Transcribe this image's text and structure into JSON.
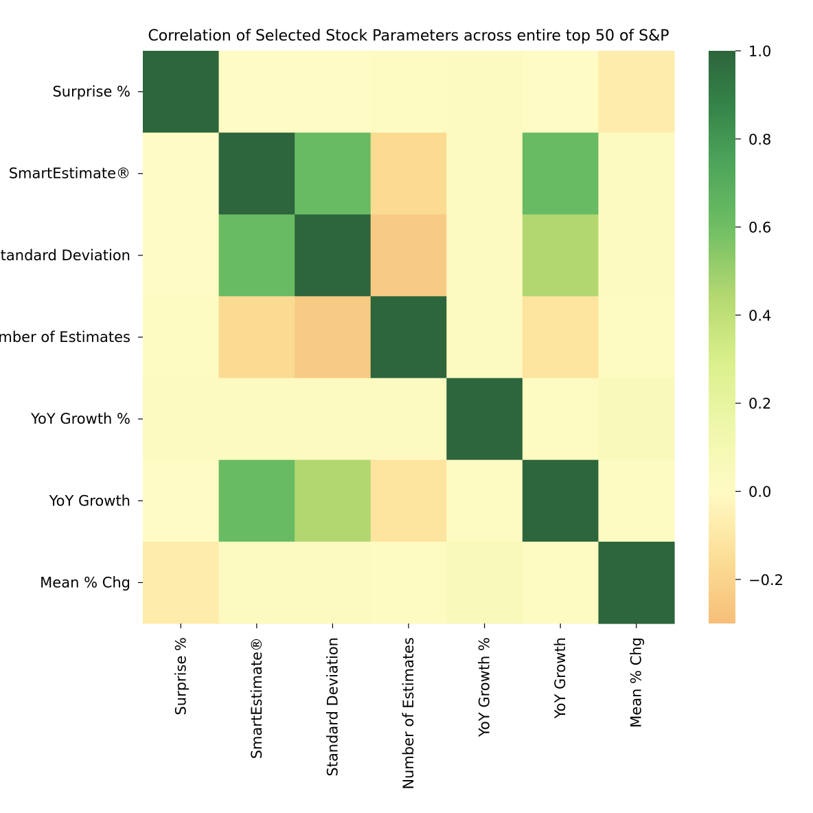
{
  "chart_data": {
    "type": "heatmap",
    "title": "Correlation of Selected Stock Parameters across entire top 50 of S&P",
    "row_labels": [
      "Surprise %",
      "SmartEstimate®",
      "Standard Deviation",
      "Number of Estimates",
      "YoY Growth %",
      "YoY Growth",
      "Mean % Chg"
    ],
    "col_labels": [
      "Surprise %",
      "SmartEstimate®",
      "Standard Deviation",
      "Number of Estimates",
      "YoY Growth %",
      "YoY Growth",
      "Mean % Chg"
    ],
    "values": [
      [
        1.0,
        0.0,
        0.0,
        0.01,
        0.02,
        0.0,
        -0.08
      ],
      [
        0.0,
        1.0,
        0.62,
        -0.17,
        0.02,
        0.62,
        0.02
      ],
      [
        0.0,
        0.62,
        1.0,
        -0.24,
        0.02,
        0.45,
        0.02
      ],
      [
        0.01,
        -0.17,
        -0.24,
        1.0,
        0.02,
        -0.12,
        0.01
      ],
      [
        0.02,
        0.02,
        0.02,
        0.02,
        1.0,
        0.01,
        0.06
      ],
      [
        0.0,
        0.62,
        0.45,
        -0.12,
        0.01,
        1.0,
        0.01
      ],
      [
        -0.08,
        0.02,
        0.02,
        0.01,
        0.06,
        0.01,
        1.0
      ]
    ],
    "colormap": "RdYlGn (centered at 0)",
    "vmin": -0.3,
    "vmax": 1.0,
    "colorbar_ticks": [
      "1.0",
      "0.8",
      "0.6",
      "0.4",
      "0.2",
      "0.0",
      "−0.2"
    ],
    "colorbar_tick_values": [
      1.0,
      0.8,
      0.6,
      0.4,
      0.2,
      0.0,
      -0.2
    ]
  }
}
